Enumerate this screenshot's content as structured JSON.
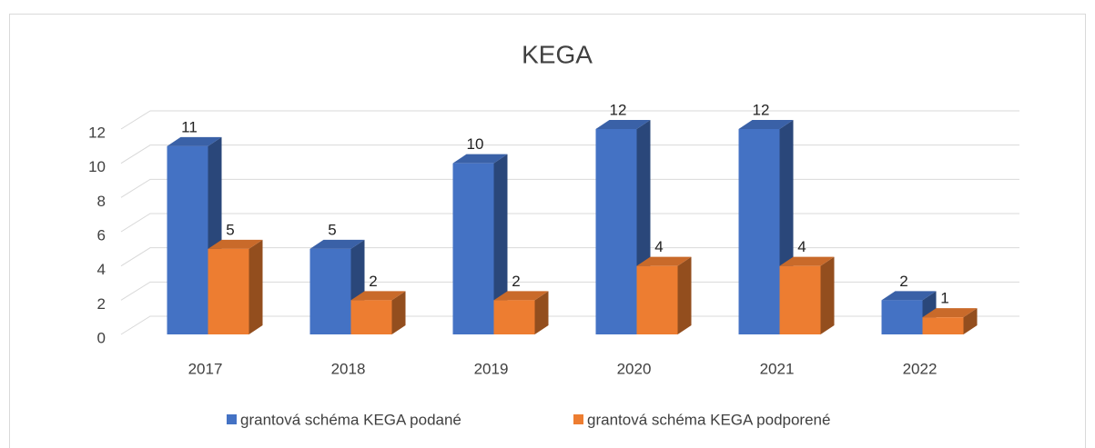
{
  "chart_data": {
    "type": "bar3d",
    "title": "KEGA",
    "categories": [
      "2017",
      "2018",
      "2019",
      "2020",
      "2021",
      "2022"
    ],
    "series": [
      {
        "name": "grantová schéma KEGA podané",
        "color": "#4472c4",
        "values": [
          11,
          5,
          10,
          12,
          12,
          2
        ]
      },
      {
        "name": "grantová schéma KEGA podporené",
        "color": "#ed7d31",
        "values": [
          5,
          2,
          2,
          4,
          4,
          1
        ]
      }
    ],
    "ylim": [
      0,
      12
    ],
    "yticks": [
      0,
      2,
      4,
      6,
      8,
      10,
      12
    ],
    "grid": true,
    "legend": "bottom"
  }
}
